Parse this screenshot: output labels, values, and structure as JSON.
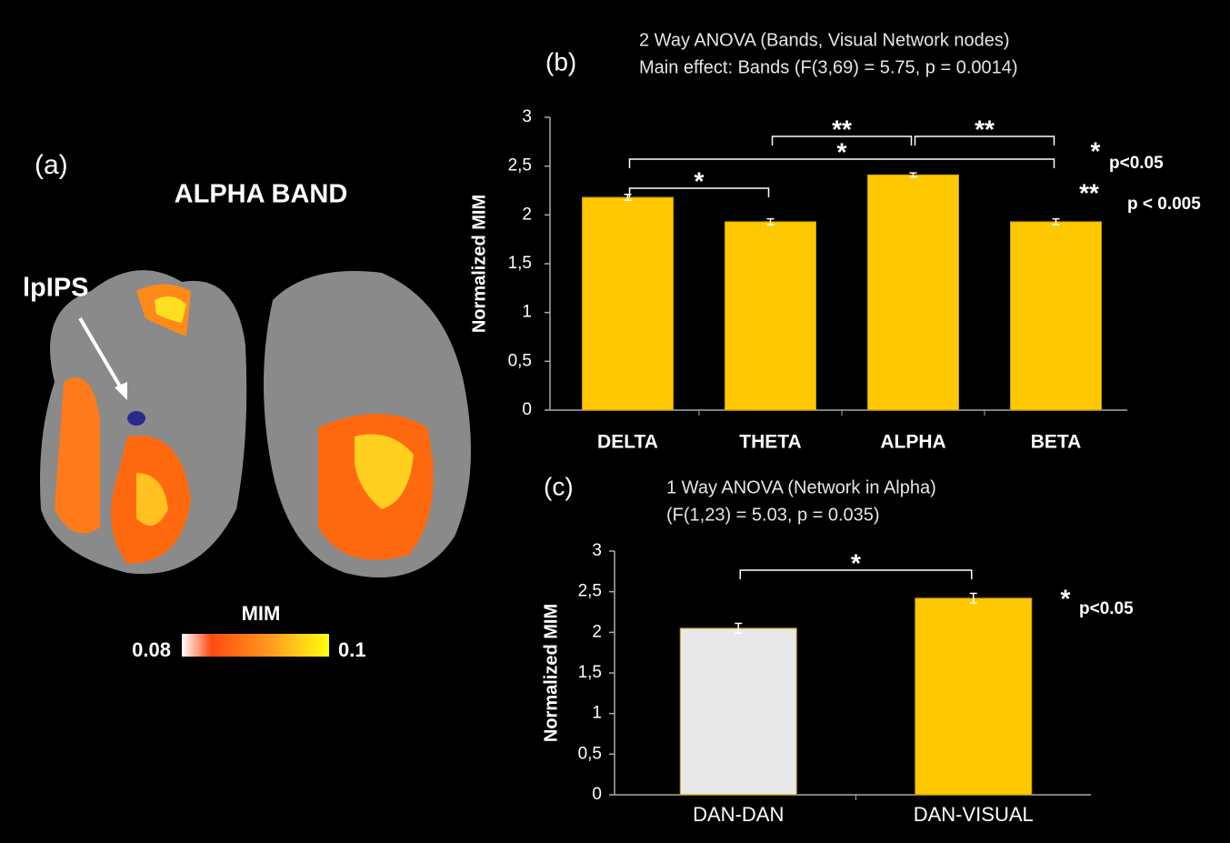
{
  "panel_a": {
    "label": "(a)",
    "title": "ALPHA BAND",
    "annotation": "lpIPS",
    "colorbar": {
      "title": "MIM",
      "min": 0.08,
      "max": 0.1
    }
  },
  "chart_data": [
    {
      "type": "bar",
      "panel": "(b)",
      "title": "2 Way ANOVA (Bands, Visual Network nodes)",
      "subtitle": "Main effect: Bands (F(3,69) = 5.75, p = 0.0014)",
      "y_label": "Normalized MIM",
      "categories": [
        "DELTA",
        "THETA",
        "ALPHA",
        "BETA"
      ],
      "values": [
        2.18,
        1.93,
        2.41,
        1.93
      ],
      "errors": [
        0.03,
        0.03,
        0.02,
        0.03
      ],
      "colors": [
        "#ffc800",
        "#ffc800",
        "#ffc800",
        "#ffc800"
      ],
      "ylim": [
        0,
        3
      ],
      "yticks": [
        0,
        {
          "value": 0.5,
          "label": "0,5"
        },
        1,
        {
          "value": 1.5,
          "label": "1,5"
        },
        2,
        {
          "value": 2.5,
          "label": "2,5"
        },
        3
      ],
      "significance": [
        {
          "between": [
            "DELTA",
            "THETA"
          ],
          "label": "*"
        },
        {
          "between": [
            "THETA",
            "ALPHA"
          ],
          "label": "**"
        },
        {
          "between": [
            "ALPHA",
            "BETA"
          ],
          "label": "**"
        },
        {
          "between": [
            "DELTA",
            "BETA"
          ],
          "label": "*"
        }
      ],
      "significance_legend": [
        {
          "marker": "*",
          "text": "p<0.05"
        },
        {
          "marker": "**",
          "text": "p < 0.005"
        }
      ]
    },
    {
      "type": "bar",
      "panel": "(c)",
      "title": "1 Way ANOVA (Network in Alpha)",
      "subtitle": "(F(1,23) = 5.03, p = 0.035)",
      "y_label": "Normalized MIM",
      "categories": [
        "DAN-DAN",
        "DAN-VISUAL"
      ],
      "values": [
        2.05,
        2.42
      ],
      "errors": [
        0.06,
        0.06
      ],
      "colors": [
        "#e8e8e8",
        "#ffc800"
      ],
      "ylim": [
        0,
        3
      ],
      "yticks": [
        0,
        {
          "value": 0.5,
          "label": "0,5"
        },
        1,
        {
          "value": 1.5,
          "label": "1,5"
        },
        2,
        {
          "value": 2.5,
          "label": "2,5"
        },
        3
      ],
      "significance": [
        {
          "between": [
            "DAN-DAN",
            "DAN-VISUAL"
          ],
          "label": "*"
        }
      ],
      "significance_legend": [
        {
          "marker": "*",
          "text": "p<0.05"
        }
      ]
    }
  ]
}
